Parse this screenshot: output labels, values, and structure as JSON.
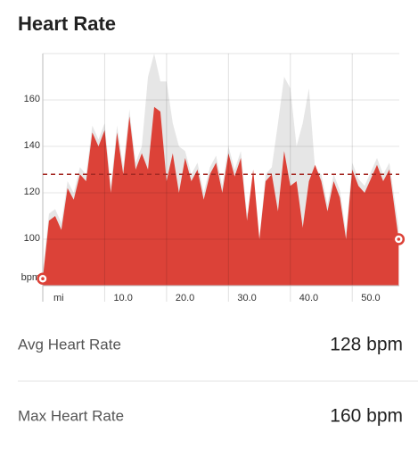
{
  "header": {
    "title": "Heart Rate"
  },
  "chart_data": {
    "type": "area",
    "y_label": "bpm",
    "x_label": "mi",
    "x": [
      0,
      1,
      2,
      3,
      4,
      5,
      6,
      7,
      8,
      9,
      10,
      11,
      12,
      13,
      14,
      15,
      16,
      17,
      18,
      19,
      20,
      21,
      22,
      23,
      24,
      25,
      26,
      27,
      28,
      29,
      30,
      31,
      32,
      33,
      34,
      35,
      36,
      37,
      38,
      39,
      40,
      41,
      42,
      43,
      44,
      45,
      46,
      47,
      48,
      49,
      50,
      51,
      52,
      53,
      54,
      55,
      56,
      57.5
    ],
    "series": [
      {
        "color": "#e6e6e6",
        "values": [
          86,
          111,
          113,
          107,
          125,
          120,
          131,
          128,
          149,
          143,
          150,
          123,
          149,
          131,
          156,
          133,
          140,
          170,
          180,
          168,
          168,
          150,
          140,
          138,
          128,
          133,
          120,
          131,
          136,
          123,
          140,
          130,
          138,
          111,
          115,
          100,
          128,
          131,
          150,
          170,
          165,
          140,
          150,
          165,
          130,
          128,
          115,
          128,
          121,
          103,
          133,
          126,
          123,
          129,
          135,
          128,
          133,
          105
        ]
      },
      {
        "color": "#dc4238",
        "values": [
          83,
          108,
          110,
          104,
          122,
          117,
          128,
          125,
          146,
          140,
          147,
          120,
          146,
          128,
          153,
          130,
          137,
          130,
          157,
          155,
          125,
          137,
          120,
          135,
          125,
          130,
          117,
          128,
          133,
          120,
          137,
          127,
          135,
          108,
          130,
          100,
          125,
          128,
          112,
          138,
          123,
          125,
          105,
          125,
          132,
          125,
          112,
          125,
          118,
          100,
          130,
          123,
          120,
          126,
          132,
          125,
          130,
          100
        ]
      }
    ],
    "average": 128,
    "average_color": "#a52a24",
    "xlim": [
      0,
      57.6
    ],
    "ylim": [
      80,
      180
    ],
    "xticks": [
      {
        "value": 10,
        "label": "10.0"
      },
      {
        "value": 20,
        "label": "20.0"
      },
      {
        "value": 30,
        "label": "30.0"
      },
      {
        "value": 40,
        "label": "40.0"
      },
      {
        "value": 50,
        "label": "50.0"
      }
    ],
    "yticks": [
      100,
      120,
      140,
      160
    ],
    "grid": true
  },
  "stats": [
    {
      "label": "Avg Heart Rate",
      "value": "128 bpm"
    },
    {
      "label": "Max Heart Rate",
      "value": "160 bpm"
    }
  ]
}
